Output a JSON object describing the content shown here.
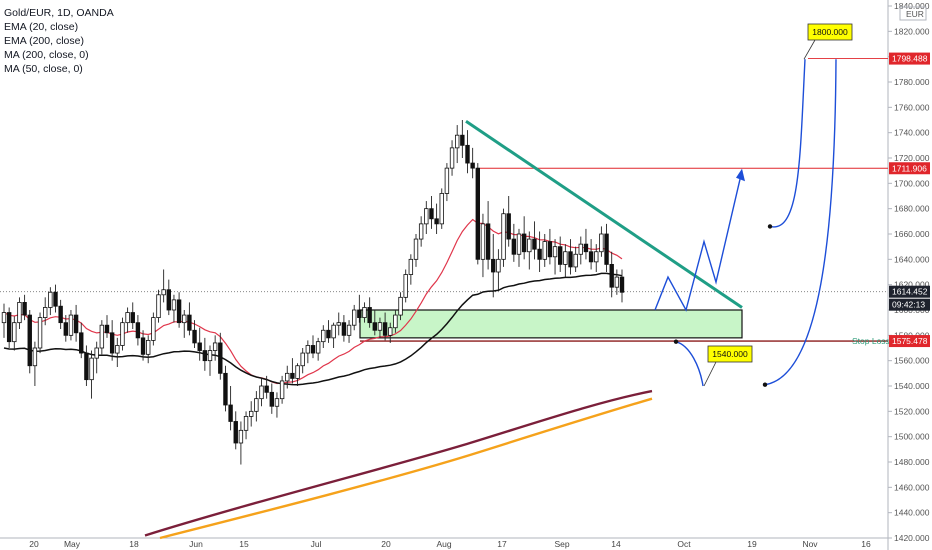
{
  "legend": {
    "symbol": "Gold/EUR, 1D, OANDA",
    "indicators": [
      "EMA (20, close)",
      "EMA (200, close)",
      "MA (200, close, 0)",
      "MA (50, close, 0)"
    ]
  },
  "currency_label": "EUR",
  "chart_data": {
    "type": "candlestick",
    "title": "Gold/EUR, 1D, OANDA",
    "currency": "EUR",
    "ylim": [
      1420,
      1840
    ],
    "yticks": [
      1420,
      1440,
      1460,
      1480,
      1500,
      1520,
      1540,
      1560,
      1580,
      1600,
      1620,
      1640,
      1660,
      1680,
      1700,
      1720,
      1740,
      1760,
      1780,
      1800,
      1820,
      1840
    ],
    "ytick_labels": [
      "1420.000",
      "1440.000",
      "1460.000",
      "1480.000",
      "1500.000",
      "1520.000",
      "1540.000",
      "1560.000",
      "1580.000",
      "1600.000",
      "1620.000",
      "1640.000",
      "1660.000",
      "1680.000",
      "1700.000",
      "1720.000",
      "1740.000",
      "1760.000",
      "1780.000",
      "1800.000",
      "1820.000",
      "1840.000"
    ],
    "x_ticks": [
      "20",
      "May",
      "18",
      "Jun",
      "15",
      "Jul",
      "20",
      "Aug",
      "17",
      "Sep",
      "14",
      "Oct",
      "19",
      "Nov",
      "16"
    ],
    "ohlc": [
      [
        1590,
        1605,
        1578,
        1598
      ],
      [
        1598,
        1602,
        1570,
        1575
      ],
      [
        1575,
        1595,
        1568,
        1590
      ],
      [
        1590,
        1610,
        1585,
        1606
      ],
      [
        1606,
        1612,
        1592,
        1596
      ],
      [
        1596,
        1600,
        1550,
        1556
      ],
      [
        1556,
        1575,
        1540,
        1570
      ],
      [
        1570,
        1598,
        1566,
        1594
      ],
      [
        1594,
        1610,
        1588,
        1602
      ],
      [
        1602,
        1618,
        1596,
        1614
      ],
      [
        1614,
        1620,
        1598,
        1603
      ],
      [
        1603,
        1608,
        1585,
        1590
      ],
      [
        1590,
        1596,
        1575,
        1580
      ],
      [
        1580,
        1600,
        1576,
        1596
      ],
      [
        1596,
        1604,
        1575,
        1582
      ],
      [
        1582,
        1590,
        1562,
        1566
      ],
      [
        1566,
        1572,
        1540,
        1545
      ],
      [
        1545,
        1568,
        1530,
        1562
      ],
      [
        1562,
        1575,
        1550,
        1570
      ],
      [
        1570,
        1592,
        1565,
        1588
      ],
      [
        1588,
        1596,
        1578,
        1582
      ],
      [
        1582,
        1592,
        1560,
        1566
      ],
      [
        1566,
        1578,
        1555,
        1572
      ],
      [
        1572,
        1594,
        1568,
        1590
      ],
      [
        1590,
        1602,
        1582,
        1598
      ],
      [
        1598,
        1606,
        1585,
        1590
      ],
      [
        1590,
        1596,
        1572,
        1578
      ],
      [
        1578,
        1584,
        1560,
        1565
      ],
      [
        1565,
        1580,
        1558,
        1576
      ],
      [
        1576,
        1598,
        1572,
        1594
      ],
      [
        1594,
        1616,
        1590,
        1612
      ],
      [
        1612,
        1632,
        1606,
        1616
      ],
      [
        1616,
        1624,
        1596,
        1600
      ],
      [
        1600,
        1612,
        1590,
        1608
      ],
      [
        1608,
        1614,
        1586,
        1590
      ],
      [
        1590,
        1600,
        1578,
        1596
      ],
      [
        1596,
        1606,
        1580,
        1584
      ],
      [
        1584,
        1592,
        1570,
        1574
      ],
      [
        1574,
        1586,
        1560,
        1568
      ],
      [
        1568,
        1578,
        1552,
        1560
      ],
      [
        1560,
        1572,
        1548,
        1568
      ],
      [
        1568,
        1580,
        1560,
        1574
      ],
      [
        1574,
        1582,
        1545,
        1550
      ],
      [
        1550,
        1556,
        1520,
        1525
      ],
      [
        1525,
        1540,
        1505,
        1512
      ],
      [
        1512,
        1520,
        1490,
        1495
      ],
      [
        1495,
        1512,
        1478,
        1505
      ],
      [
        1505,
        1520,
        1498,
        1516
      ],
      [
        1516,
        1528,
        1508,
        1520
      ],
      [
        1520,
        1536,
        1512,
        1530
      ],
      [
        1530,
        1546,
        1524,
        1540
      ],
      [
        1540,
        1548,
        1530,
        1535
      ],
      [
        1535,
        1542,
        1518,
        1524
      ],
      [
        1524,
        1535,
        1515,
        1530
      ],
      [
        1530,
        1548,
        1526,
        1544
      ],
      [
        1544,
        1556,
        1538,
        1550
      ],
      [
        1550,
        1562,
        1542,
        1546
      ],
      [
        1546,
        1558,
        1540,
        1556
      ],
      [
        1556,
        1570,
        1550,
        1566
      ],
      [
        1566,
        1576,
        1558,
        1572
      ],
      [
        1572,
        1580,
        1562,
        1566
      ],
      [
        1566,
        1578,
        1560,
        1575
      ],
      [
        1575,
        1588,
        1570,
        1584
      ],
      [
        1584,
        1592,
        1574,
        1578
      ],
      [
        1578,
        1590,
        1570,
        1588
      ],
      [
        1588,
        1598,
        1580,
        1590
      ],
      [
        1590,
        1596,
        1575,
        1580
      ],
      [
        1580,
        1592,
        1574,
        1588
      ],
      [
        1588,
        1604,
        1584,
        1600
      ],
      [
        1600,
        1612,
        1590,
        1594
      ],
      [
        1594,
        1606,
        1590,
        1602
      ],
      [
        1602,
        1610,
        1586,
        1590
      ],
      [
        1590,
        1600,
        1580,
        1584
      ],
      [
        1584,
        1594,
        1578,
        1590
      ],
      [
        1590,
        1598,
        1576,
        1580
      ],
      [
        1580,
        1590,
        1574,
        1586
      ],
      [
        1586,
        1600,
        1582,
        1596
      ],
      [
        1596,
        1614,
        1592,
        1610
      ],
      [
        1610,
        1632,
        1606,
        1628
      ],
      [
        1628,
        1644,
        1620,
        1640
      ],
      [
        1640,
        1660,
        1634,
        1656
      ],
      [
        1656,
        1674,
        1650,
        1668
      ],
      [
        1668,
        1686,
        1660,
        1680
      ],
      [
        1680,
        1690,
        1664,
        1672
      ],
      [
        1672,
        1684,
        1660,
        1668
      ],
      [
        1668,
        1696,
        1664,
        1692
      ],
      [
        1692,
        1716,
        1686,
        1712
      ],
      [
        1712,
        1734,
        1706,
        1728
      ],
      [
        1728,
        1746,
        1716,
        1738
      ],
      [
        1738,
        1750,
        1720,
        1730
      ],
      [
        1730,
        1742,
        1708,
        1716
      ],
      [
        1716,
        1728,
        1704,
        1712
      ],
      [
        1712,
        1716,
        1636,
        1640
      ],
      [
        1640,
        1676,
        1626,
        1668
      ],
      [
        1668,
        1686,
        1632,
        1640
      ],
      [
        1640,
        1660,
        1610,
        1630
      ],
      [
        1630,
        1648,
        1616,
        1640
      ],
      [
        1640,
        1680,
        1634,
        1676
      ],
      [
        1676,
        1690,
        1650,
        1656
      ],
      [
        1656,
        1668,
        1638,
        1644
      ],
      [
        1644,
        1664,
        1634,
        1660
      ],
      [
        1660,
        1674,
        1640,
        1646
      ],
      [
        1646,
        1662,
        1632,
        1656
      ],
      [
        1656,
        1670,
        1640,
        1648
      ],
      [
        1648,
        1662,
        1630,
        1640
      ],
      [
        1640,
        1660,
        1634,
        1654
      ],
      [
        1654,
        1664,
        1636,
        1642
      ],
      [
        1642,
        1656,
        1628,
        1650
      ],
      [
        1650,
        1658,
        1630,
        1636
      ],
      [
        1636,
        1652,
        1626,
        1646
      ],
      [
        1646,
        1656,
        1628,
        1634
      ],
      [
        1634,
        1650,
        1630,
        1644
      ],
      [
        1644,
        1658,
        1636,
        1652
      ],
      [
        1652,
        1664,
        1640,
        1646
      ],
      [
        1646,
        1656,
        1632,
        1638
      ],
      [
        1638,
        1652,
        1630,
        1646
      ],
      [
        1646,
        1666,
        1642,
        1660
      ],
      [
        1660,
        1668,
        1630,
        1636
      ],
      [
        1636,
        1646,
        1610,
        1618
      ],
      [
        1618,
        1632,
        1612,
        1626
      ],
      [
        1626,
        1632,
        1606,
        1614
      ]
    ],
    "overlay_indicators": {
      "ema20": "red line",
      "ema200": "black line",
      "ma200": "dark maroon line",
      "ma50": "orange line"
    },
    "annotations": {
      "descending_trendline": "green line from August high toward apex",
      "support_zone": [
        1578,
        1600
      ],
      "horizontal_levels": [
        1798.488,
        1711.906,
        1575.478
      ],
      "price_tags": [
        {
          "label": "1798.488",
          "color": "red"
        },
        {
          "label": "1711.906",
          "color": "red"
        },
        {
          "label": "1614.452",
          "color": "dark"
        },
        {
          "label": "09:42:13",
          "color": "dark"
        },
        {
          "label": "1575.478",
          "color": "red"
        }
      ],
      "callouts": [
        {
          "label": "1800.000",
          "color": "#ffff00"
        },
        {
          "label": "1540.000",
          "color": "#ffff00"
        }
      ],
      "stop_loss_label": "Stop Loss"
    }
  }
}
